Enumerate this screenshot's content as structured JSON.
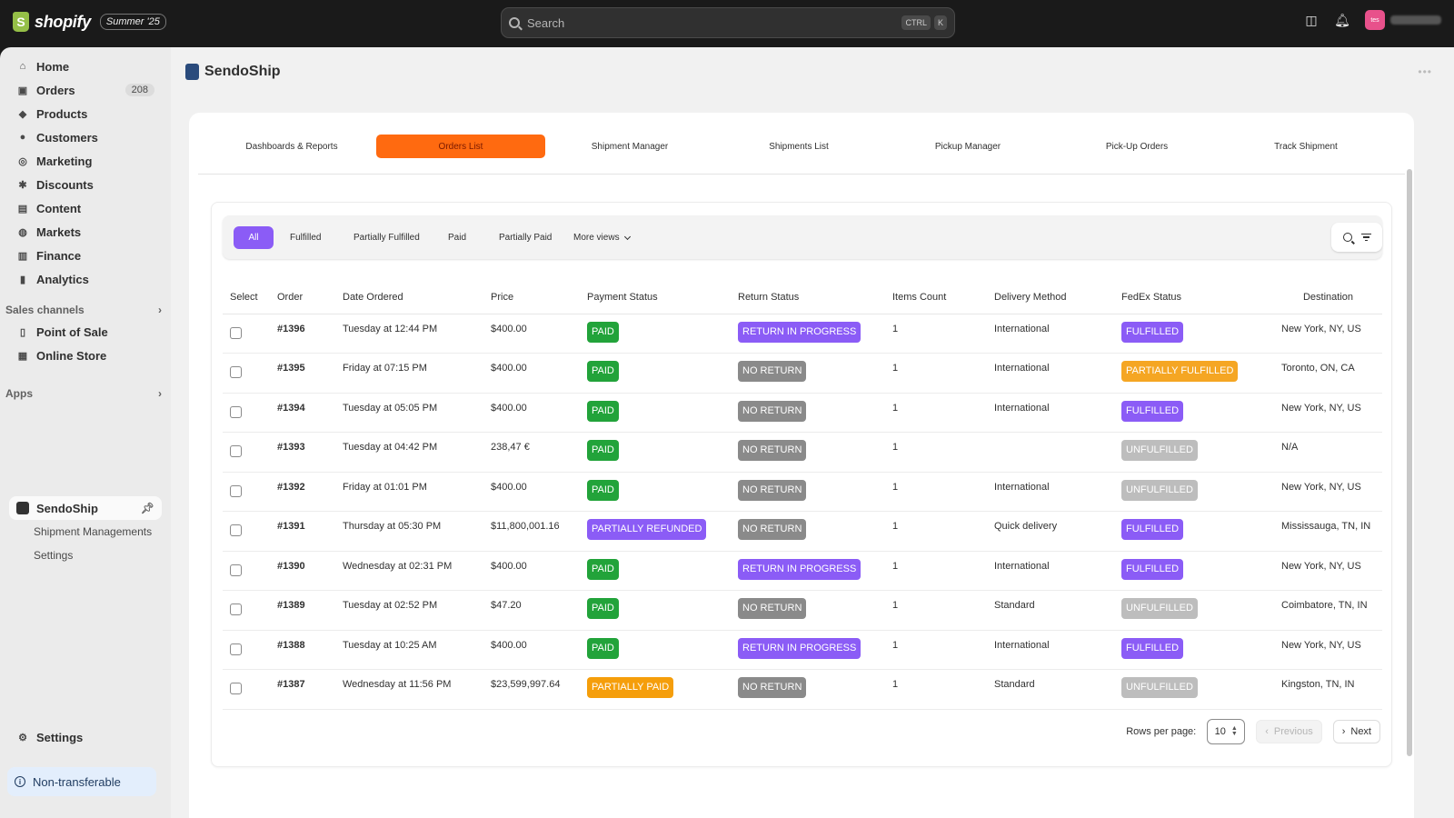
{
  "topbar": {
    "brand": "shopify",
    "edition": "Summer '25",
    "search_placeholder": "Search",
    "kbd1": "CTRL",
    "kbd2": "K",
    "avatar_initials": "tes"
  },
  "sidebar": {
    "items": [
      {
        "label": "Home",
        "icon": "home-icon",
        "glyph": "⌂"
      },
      {
        "label": "Orders",
        "icon": "orders-icon",
        "glyph": "▣",
        "badge": "208"
      },
      {
        "label": "Products",
        "icon": "tag-icon",
        "glyph": "◆"
      },
      {
        "label": "Customers",
        "icon": "person-icon",
        "glyph": "●"
      },
      {
        "label": "Marketing",
        "icon": "target-icon",
        "glyph": "◎"
      },
      {
        "label": "Discounts",
        "icon": "discount-icon",
        "glyph": "✱"
      },
      {
        "label": "Content",
        "icon": "content-icon",
        "glyph": "▤"
      },
      {
        "label": "Markets",
        "icon": "globe-icon",
        "glyph": "◍"
      },
      {
        "label": "Finance",
        "icon": "bank-icon",
        "glyph": "▥"
      },
      {
        "label": "Analytics",
        "icon": "bar-chart-icon",
        "glyph": "▮"
      }
    ],
    "sales_channels_label": "Sales channels",
    "channels": [
      {
        "label": "Point of Sale",
        "icon": "pos-icon",
        "glyph": "▯"
      },
      {
        "label": "Online Store",
        "icon": "store-icon",
        "glyph": "▦"
      }
    ],
    "apps_label": "Apps",
    "active_app": "SendoShip",
    "app_subitems": [
      "Shipment Managements",
      "Settings"
    ],
    "settings_label": "Settings",
    "non_transferable_label": "Non-transferable"
  },
  "main": {
    "app_title": "SendoShip",
    "tabs": [
      "Dashboards & Reports",
      "Orders List",
      "Shipment Manager",
      "Shipments List",
      "Pickup Manager",
      "Pick-Up Orders",
      "Track Shipment"
    ],
    "active_tab": "Orders List",
    "filters": [
      "All",
      "Fulfilled",
      "Partially Fulfilled",
      "Paid",
      "Partially Paid"
    ],
    "more_views": "More views",
    "columns": [
      "Select",
      "Order",
      "Date Ordered",
      "Price",
      "Payment Status",
      "Return Status",
      "Items Count",
      "Delivery Method",
      "FedEx Status",
      "Destination"
    ],
    "rows": [
      {
        "order": "#1396",
        "date": "Tuesday at 12:44 PM",
        "price": "$400.00",
        "payment": "PAID",
        "return": "RETURN IN PROGRESS",
        "items": "1",
        "delivery": "International",
        "fedex": "FULFILLED",
        "dest": "New York, NY, US"
      },
      {
        "order": "#1395",
        "date": "Friday at 07:15 PM",
        "price": "$400.00",
        "payment": "PAID",
        "return": "NO RETURN",
        "items": "1",
        "delivery": "International",
        "fedex": "PARTIALLY FULFILLED",
        "dest": "Toronto, ON, CA"
      },
      {
        "order": "#1394",
        "date": "Tuesday at 05:05 PM",
        "price": "$400.00",
        "payment": "PAID",
        "return": "NO RETURN",
        "items": "1",
        "delivery": "International",
        "fedex": "FULFILLED",
        "dest": "New York, NY, US"
      },
      {
        "order": "#1393",
        "date": "Tuesday at 04:42 PM",
        "price": "238,47 €",
        "payment": "PAID",
        "return": "NO RETURN",
        "items": "1",
        "delivery": "",
        "fedex": "UNFULFILLED",
        "dest": "N/A"
      },
      {
        "order": "#1392",
        "date": "Friday at 01:01 PM",
        "price": "$400.00",
        "payment": "PAID",
        "return": "NO RETURN",
        "items": "1",
        "delivery": "International",
        "fedex": "UNFULFILLED",
        "dest": "New York, NY, US"
      },
      {
        "order": "#1391",
        "date": "Thursday at 05:30 PM",
        "price": "$11,800,001.16",
        "payment": "PARTIALLY REFUNDED",
        "return": "NO RETURN",
        "items": "1",
        "delivery": "Quick delivery",
        "fedex": "FULFILLED",
        "dest": "Mississauga, TN, IN"
      },
      {
        "order": "#1390",
        "date": "Wednesday at 02:31 PM",
        "price": "$400.00",
        "payment": "PAID",
        "return": "RETURN IN PROGRESS",
        "items": "1",
        "delivery": "International",
        "fedex": "FULFILLED",
        "dest": "New York, NY, US"
      },
      {
        "order": "#1389",
        "date": "Tuesday at 02:52 PM",
        "price": "$47.20",
        "payment": "PAID",
        "return": "NO RETURN",
        "items": "1",
        "delivery": "Standard",
        "fedex": "UNFULFILLED",
        "dest": "Coimbatore, TN, IN"
      },
      {
        "order": "#1388",
        "date": "Tuesday at 10:25 AM",
        "price": "$400.00",
        "payment": "PAID",
        "return": "RETURN IN PROGRESS",
        "items": "1",
        "delivery": "International",
        "fedex": "FULFILLED",
        "dest": "New York, NY, US"
      },
      {
        "order": "#1387",
        "date": "Wednesday at 11:56 PM",
        "price": "$23,599,997.64",
        "payment": "PARTIALLY PAID",
        "return": "NO RETURN",
        "items": "1",
        "delivery": "Standard",
        "fedex": "UNFULFILLED",
        "dest": "Kingston, TN, IN"
      }
    ],
    "status_colors": {
      "PAID": "#22a33a",
      "PARTIALLY REFUNDED": "#8b5cf6",
      "PARTIALLY PAID": "#f59e0b",
      "RETURN IN PROGRESS": "#8b5cf6",
      "NO RETURN": "#8a8a8a",
      "FULFILLED": "#8b5cf6",
      "PARTIALLY FULFILLED": "#f5a623",
      "UNFULFILLED": "#bdbdbd"
    },
    "pagination": {
      "rows_label": "Rows per page:",
      "rows_value": "10",
      "previous": "Previous",
      "next": "Next"
    }
  }
}
